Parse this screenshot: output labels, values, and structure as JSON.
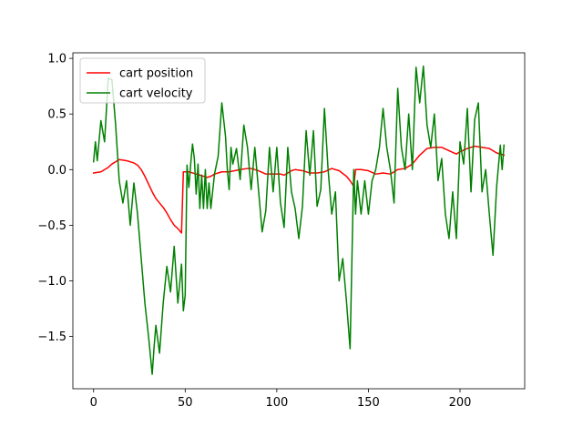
{
  "chart_data": {
    "type": "line",
    "title": "",
    "xlabel": "",
    "ylabel": "",
    "xlim": [
      -11.3,
      235.3
    ],
    "ylim": [
      -1.97,
      1.05
    ],
    "xticks": [
      0,
      50,
      100,
      150,
      200
    ],
    "xtick_labels": [
      "0",
      "50",
      "100",
      "150",
      "200"
    ],
    "yticks": [
      -1.5,
      -1.0,
      -0.5,
      0.0,
      0.5,
      1.0
    ],
    "ytick_labels": [
      "−1.5",
      "−1.0",
      "−0.5",
      "0.0",
      "0.5",
      "1.0"
    ],
    "grid": false,
    "legend_position": "upper-left",
    "series": [
      {
        "name": "cart position",
        "color": "#ff0000",
        "x": [
          0,
          4,
          8,
          10,
          14,
          18,
          22,
          24,
          26,
          28,
          30,
          32,
          34,
          36,
          38,
          40,
          42,
          44,
          46,
          48,
          49,
          50,
          52,
          54,
          56,
          58,
          60,
          62,
          64,
          66,
          70,
          74,
          80,
          84,
          86,
          90,
          94,
          98,
          102,
          104,
          106,
          108,
          110,
          114,
          118,
          122,
          126,
          130,
          134,
          138,
          140,
          142,
          143,
          146,
          150,
          154,
          158,
          162,
          166,
          170,
          174,
          178,
          182,
          186,
          190,
          194,
          198,
          200,
          204,
          208,
          212,
          216,
          220,
          224
        ],
        "y": [
          -0.03,
          -0.02,
          0.02,
          0.05,
          0.09,
          0.08,
          0.06,
          0.04,
          0.0,
          -0.06,
          -0.13,
          -0.2,
          -0.26,
          -0.3,
          -0.34,
          -0.39,
          -0.45,
          -0.5,
          -0.53,
          -0.57,
          -0.02,
          -0.02,
          -0.02,
          -0.03,
          -0.04,
          -0.05,
          -0.06,
          -0.07,
          -0.06,
          -0.04,
          -0.02,
          -0.02,
          0.0,
          0.01,
          0.01,
          -0.01,
          -0.04,
          -0.04,
          -0.04,
          -0.05,
          -0.03,
          -0.01,
          0.0,
          -0.01,
          -0.03,
          -0.03,
          -0.02,
          0.01,
          -0.01,
          -0.06,
          -0.1,
          -0.15,
          0.0,
          0.0,
          -0.01,
          -0.04,
          -0.03,
          -0.04,
          0.0,
          0.01,
          0.05,
          0.13,
          0.19,
          0.2,
          0.2,
          0.17,
          0.14,
          0.16,
          0.19,
          0.21,
          0.2,
          0.19,
          0.15,
          0.13
        ]
      },
      {
        "name": "cart velocity",
        "color": "#008000",
        "x": [
          0,
          1,
          2,
          4,
          6,
          8,
          10,
          12,
          14,
          16,
          18,
          20,
          22,
          24,
          26,
          28,
          30,
          32,
          33,
          34,
          36,
          38,
          40,
          42,
          44,
          46,
          48,
          49,
          50,
          51,
          52,
          53,
          54,
          55,
          56,
          57,
          58,
          59,
          60,
          61,
          62,
          63,
          64,
          66,
          68,
          70,
          72,
          73,
          74,
          75,
          76,
          78,
          80,
          82,
          84,
          86,
          88,
          90,
          92,
          94,
          96,
          98,
          100,
          102,
          104,
          106,
          108,
          110,
          112,
          114,
          116,
          118,
          120,
          122,
          124,
          126,
          128,
          130,
          132,
          134,
          136,
          138,
          140,
          142,
          143,
          144,
          146,
          148,
          150,
          152,
          154,
          156,
          158,
          160,
          162,
          164,
          166,
          168,
          170,
          172,
          174,
          176,
          178,
          180,
          182,
          184,
          186,
          188,
          190,
          192,
          194,
          196,
          198,
          200,
          202,
          204,
          206,
          208,
          210,
          212,
          214,
          216,
          218,
          220,
          222,
          223,
          224
        ],
        "y": [
          0.07,
          0.25,
          0.08,
          0.44,
          0.25,
          0.82,
          0.81,
          0.41,
          -0.1,
          -0.3,
          -0.1,
          -0.5,
          -0.12,
          -0.4,
          -0.8,
          -1.2,
          -1.5,
          -1.84,
          -1.6,
          -1.4,
          -1.65,
          -1.2,
          -0.87,
          -1.1,
          -0.69,
          -1.2,
          -0.85,
          -1.27,
          -1.13,
          0.04,
          -0.16,
          0.05,
          0.23,
          0.1,
          -0.22,
          0.05,
          -0.35,
          -0.05,
          -0.35,
          0.0,
          -0.35,
          -0.12,
          -0.35,
          -0.04,
          0.12,
          0.6,
          0.3,
          0.0,
          -0.18,
          0.2,
          0.05,
          0.19,
          -0.09,
          0.4,
          0.2,
          -0.18,
          0.2,
          -0.18,
          -0.56,
          -0.37,
          0.2,
          -0.2,
          0.2,
          -0.3,
          -0.52,
          0.2,
          -0.2,
          -0.35,
          -0.62,
          -0.33,
          0.35,
          -0.05,
          0.35,
          -0.33,
          -0.18,
          0.55,
          0.0,
          -0.4,
          -0.2,
          -1.0,
          -0.8,
          -1.18,
          -1.61,
          0.0,
          -0.4,
          -0.1,
          -0.4,
          -0.1,
          -0.4,
          -0.1,
          0.0,
          0.2,
          0.55,
          0.2,
          0.0,
          -0.3,
          0.73,
          0.2,
          0.0,
          0.5,
          0.0,
          0.92,
          0.6,
          0.93,
          0.4,
          0.2,
          0.5,
          -0.1,
          0.1,
          -0.4,
          -0.62,
          -0.2,
          -0.62,
          0.25,
          0.05,
          0.55,
          -0.2,
          0.45,
          0.6,
          -0.2,
          0.0,
          -0.4,
          -0.77,
          -0.15,
          0.22,
          0.0,
          0.22
        ]
      }
    ]
  }
}
